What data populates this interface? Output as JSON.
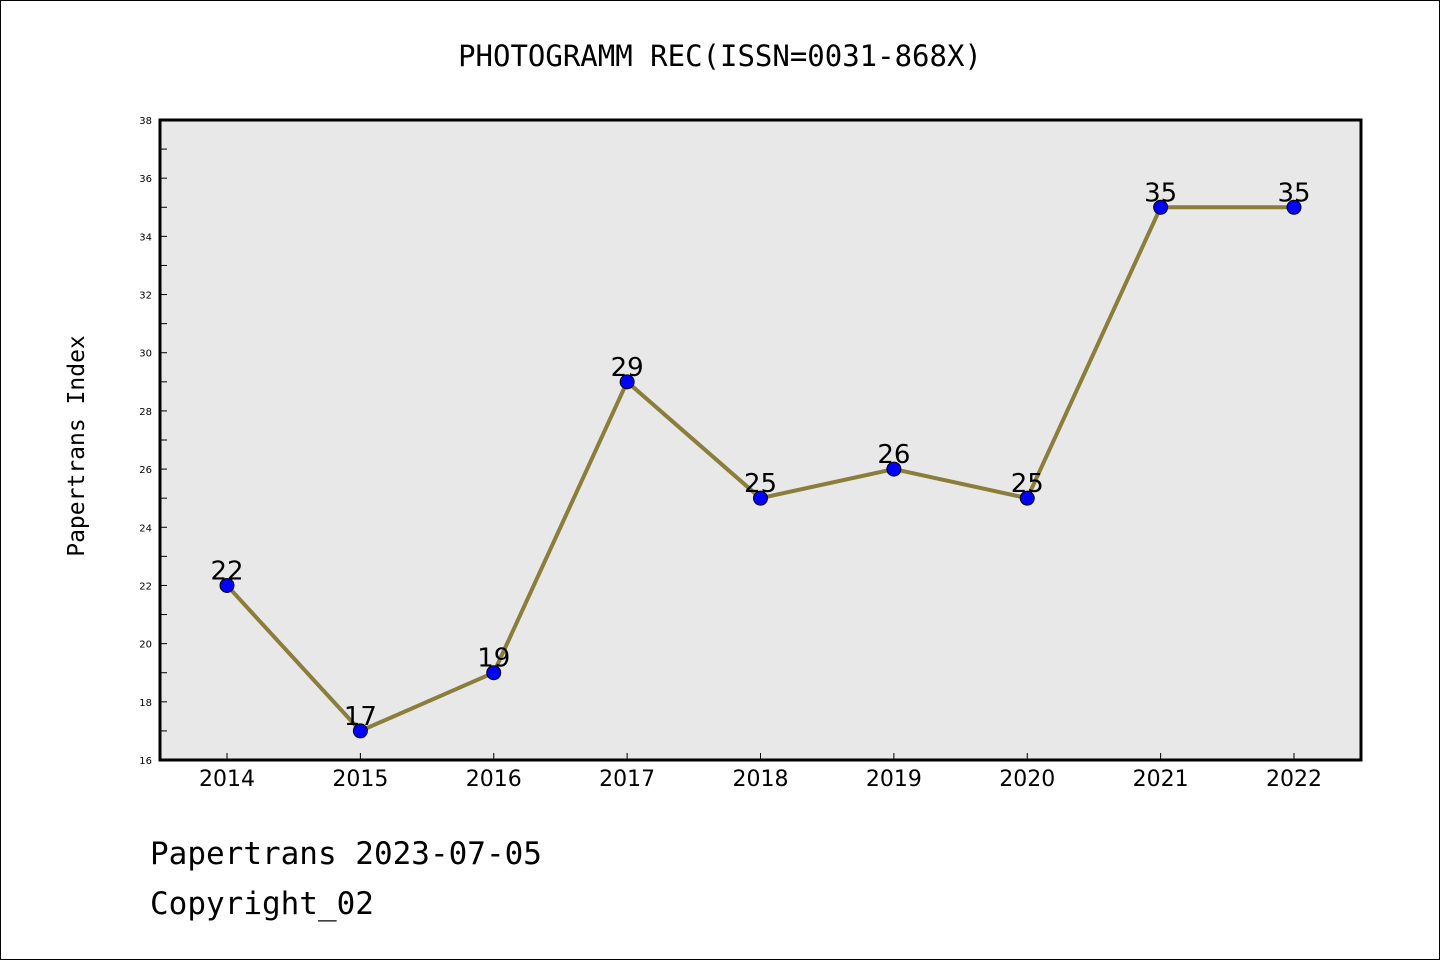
{
  "chart_data": {
    "type": "line",
    "title": "PHOTOGRAMM REC(ISSN=0031-868X)",
    "xlabel": "",
    "ylabel": "Papertrans Index",
    "categories": [
      "2014",
      "2015",
      "2016",
      "2017",
      "2018",
      "2019",
      "2020",
      "2021",
      "2022"
    ],
    "series": [
      {
        "values": [
          22,
          17,
          19,
          29,
          25,
          26,
          25,
          35,
          35
        ]
      }
    ],
    "ylim": [
      16,
      38
    ],
    "yticks": [
      16,
      18,
      20,
      22,
      24,
      26,
      28,
      30,
      32,
      34,
      36,
      38
    ],
    "grid": false,
    "data_labels": true,
    "colors": {
      "line": "#8b7d3a",
      "marker": "#0000ff",
      "plot_bg": "#e8e8e8",
      "axis": "#000000"
    }
  },
  "footer": {
    "line1": "Papertrans 2023-07-05",
    "line2": "Copyright_02"
  }
}
